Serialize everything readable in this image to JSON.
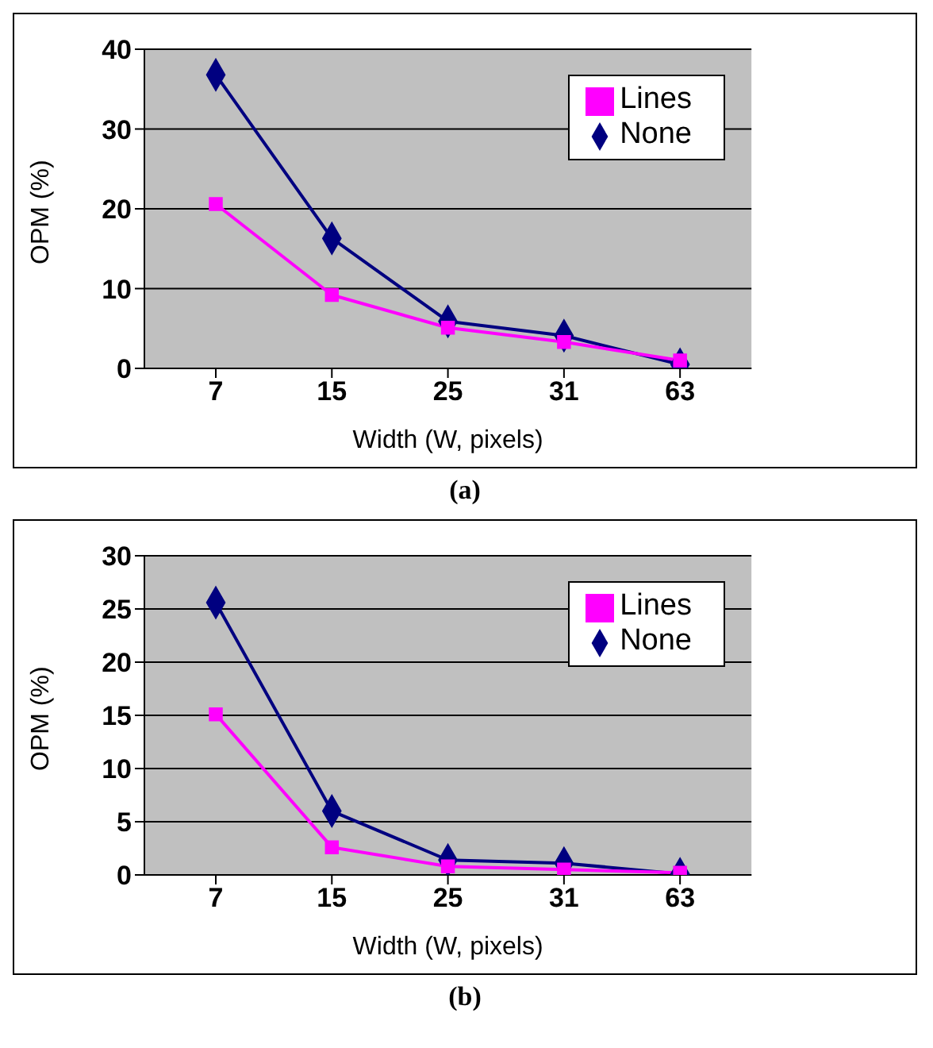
{
  "chart_data": [
    {
      "type": "line",
      "xlabel": "Width (W, pixels)",
      "ylabel": "OPM (%)",
      "categories": [
        "7",
        "15",
        "25",
        "31",
        "63"
      ],
      "ylim": [
        0,
        40
      ],
      "yticks": [
        0,
        10,
        20,
        30,
        40
      ],
      "grid": "y",
      "legend": "top right",
      "annotations": [
        "(a)"
      ],
      "series": [
        {
          "name": "None",
          "color": "#000080",
          "marker": "diamond",
          "values": [
            36.8,
            16.3,
            5.9,
            4.1,
            0.5
          ]
        },
        {
          "name": "Lines",
          "color": "#ff00ff",
          "marker": "square",
          "values": [
            20.6,
            9.2,
            5.1,
            3.3,
            1.0
          ]
        }
      ]
    },
    {
      "type": "line",
      "xlabel": "Width (W, pixels)",
      "ylabel": "OPM (%)",
      "categories": [
        "7",
        "15",
        "25",
        "31",
        "63"
      ],
      "ylim": [
        0,
        30
      ],
      "yticks": [
        0,
        5,
        10,
        15,
        20,
        25,
        30
      ],
      "grid": "y",
      "legend": "top right",
      "annotations": [
        "(b)"
      ],
      "series": [
        {
          "name": "None",
          "color": "#000080",
          "marker": "diamond",
          "values": [
            25.6,
            6.0,
            1.4,
            1.1,
            0.1
          ]
        },
        {
          "name": "Lines",
          "color": "#ff00ff",
          "marker": "square",
          "values": [
            15.1,
            2.6,
            0.8,
            0.5,
            0.2
          ]
        }
      ]
    }
  ]
}
